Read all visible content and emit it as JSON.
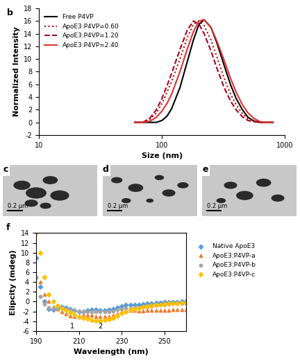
{
  "chart_data": [
    {
      "type": "line",
      "title": "b",
      "x_label": "Size (nm)",
      "y_label": "Normalized Intensity",
      "log": "x",
      "legend": "upper left",
      "xlim": [
        10,
        1000
      ],
      "xticks": [
        10,
        100,
        1000
      ],
      "ylim": [
        -2,
        18
      ],
      "yticks": [
        -2,
        0,
        2,
        4,
        6,
        8,
        10,
        12,
        14,
        16,
        18
      ],
      "x": [
        60,
        70,
        80,
        90,
        100,
        110,
        120,
        140,
        160,
        180,
        200,
        220,
        250,
        280,
        320,
        360,
        400,
        450,
        500,
        560,
        630,
        700,
        800
      ],
      "series": [
        {
          "name": "Free P4VP",
          "color": "#000000",
          "line_style": "solid",
          "values": [
            0,
            0,
            0,
            0,
            0.3,
            1,
            2.2,
            5.5,
            9.5,
            13,
            15.5,
            16.2,
            15,
            12.5,
            9,
            6,
            3.8,
            2,
            0.8,
            0.2,
            0,
            0,
            0
          ]
        },
        {
          "name": "ApoE3:P4VP=0.60",
          "color": "#c00000",
          "line_style": "dotted",
          "values": [
            0,
            0,
            0.5,
            1.5,
            3,
            4.8,
            6.5,
            10,
            13.3,
            15.5,
            16,
            15.3,
            13,
            10.3,
            7,
            4.5,
            2.8,
            1.4,
            0.6,
            0.2,
            0,
            0,
            0
          ]
        },
        {
          "name": "ApoE3:P4VP=1.20",
          "color": "#a50021",
          "line_style": "dashed",
          "values": [
            0,
            0,
            0.7,
            2,
            3.8,
            5.8,
            7.8,
            11.5,
            14.5,
            16,
            15.5,
            14,
            11.3,
            8.5,
            5.5,
            3.4,
            2,
            0.9,
            0.3,
            0.1,
            0,
            0,
            0
          ]
        },
        {
          "name": "ApoE3:P4VP=2.40",
          "color": "#e03030",
          "line_style": "solid",
          "values": [
            0,
            0,
            0.2,
            0.8,
            1.8,
            3,
            4.5,
            8,
            11.5,
            14.3,
            16,
            16.2,
            15,
            12.8,
            9.8,
            7,
            4.8,
            2.8,
            1.5,
            0.6,
            0.1,
            0,
            0
          ]
        }
      ]
    },
    {
      "type": "image",
      "title": "c",
      "annotations": [
        "0.2 µm"
      ]
    },
    {
      "type": "image",
      "title": "d",
      "annotations": [
        "0.2 µm"
      ]
    },
    {
      "type": "image",
      "title": "e",
      "annotations": [
        "0.2 µm"
      ]
    },
    {
      "type": "scatter",
      "title": "f",
      "x_label": "Wavelength (nm)",
      "y_label": "Elipcity (mdeg)",
      "legend": "right",
      "xlim": [
        190,
        260
      ],
      "xticks": [
        190,
        210,
        230,
        250
      ],
      "ylim": [
        -6,
        14
      ],
      "yticks": [
        -6,
        -4,
        -2,
        0,
        2,
        4,
        6,
        8,
        10,
        12,
        14
      ],
      "annotations": [
        {
          "text": "1",
          "x": 207,
          "y": -5
        },
        {
          "text": "2",
          "x": 220,
          "y": -5
        }
      ],
      "x": [
        190,
        192,
        194,
        196,
        198,
        200,
        202,
        204,
        206,
        208,
        210,
        212,
        214,
        216,
        218,
        220,
        222,
        224,
        226,
        228,
        230,
        232,
        234,
        236,
        238,
        240,
        242,
        244,
        246,
        248,
        250,
        252,
        254,
        256,
        258,
        260
      ],
      "series": [
        {
          "name": "Native ApoE3",
          "color": "#5b9bd5",
          "marker": "diamond",
          "values": [
            9,
            3,
            0,
            -1.5,
            -1.6,
            -1.3,
            -1,
            -1.2,
            -1.5,
            -1.8,
            -2,
            -2,
            -1.8,
            -1.7,
            -1.7,
            -1.8,
            -1.8,
            -1.7,
            -1.5,
            -1.2,
            -0.9,
            -0.7,
            -0.6,
            -0.6,
            -0.6,
            -0.5,
            -0.4,
            -0.3,
            -0.2,
            -0.2,
            -0.1,
            -0.1,
            -0.1,
            -0.1,
            0,
            0
          ]
        },
        {
          "name": "ApoE3:P4VP-a",
          "color": "#ed7d31",
          "marker": "triangle",
          "values": [
            5,
            4,
            1.5,
            0,
            -1,
            -1.5,
            -2,
            -2.5,
            -2.9,
            -3.1,
            -3,
            -2.8,
            -2.7,
            -2.8,
            -3,
            -3.1,
            -3.1,
            -3,
            -2.8,
            -2.5,
            -2.1,
            -1.9,
            -1.8,
            -1.8,
            -1.9,
            -1.9,
            -1.8,
            -1.8,
            -1.8,
            -1.8,
            -1.8,
            -1.8,
            -1.7,
            -1.7,
            -1.7,
            -1.7
          ]
        },
        {
          "name": "ApoE3:P4VP-b",
          "color": "#a5a5a5",
          "marker": "circle",
          "values": [
            5,
            1,
            -0.5,
            -1.2,
            -1.3,
            -1.3,
            -1.4,
            -1.5,
            -1.7,
            -1.8,
            -1.9,
            -2,
            -2,
            -2,
            -2.1,
            -2.1,
            -2.1,
            -2,
            -1.9,
            -1.7,
            -1.5,
            -1.4,
            -1.3,
            -1.2,
            -1.2,
            -1.1,
            -1,
            -0.9,
            -0.8,
            -0.7,
            -0.6,
            -0.5,
            -0.4,
            -0.4,
            -0.3,
            -0.3
          ]
        },
        {
          "name": "ApoE3:P4VP-c",
          "color": "#ffc000",
          "marker": "diamond",
          "values": [
            14,
            10,
            5,
            1.5,
            0,
            -0.8,
            -1.3,
            -1.8,
            -2.2,
            -2.6,
            -3,
            -3.3,
            -3.5,
            -3.7,
            -3.9,
            -3.9,
            -3.8,
            -3.6,
            -3.3,
            -2.9,
            -2.4,
            -2,
            -1.7,
            -1.5,
            -1.3,
            -1.1,
            -0.9,
            -0.8,
            -0.7,
            -0.6,
            -0.5,
            -0.4,
            -0.3,
            -0.3,
            -0.2,
            -0.2
          ]
        }
      ]
    }
  ]
}
